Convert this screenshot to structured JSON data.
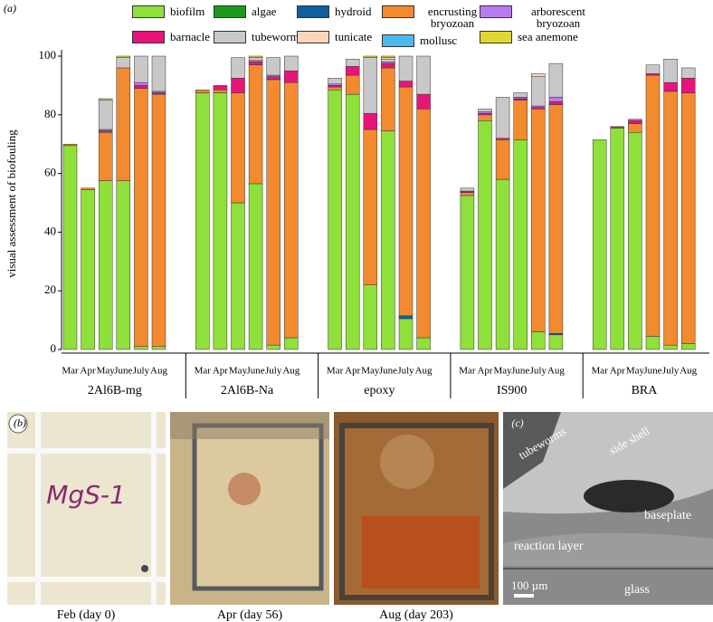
{
  "chart_data": {
    "type": "bar",
    "stacked": true,
    "panel_label": "(a)",
    "y_label": "visual assessment of biofouling",
    "groups": [
      "2Al6B-mg",
      "2Al6B-Na",
      "epoxy",
      "IS900",
      "BRA"
    ],
    "categories": [
      "Mar",
      "Apr",
      "May",
      "June",
      "July",
      "Aug",
      "Mar",
      "Apr",
      "May",
      "June",
      "July",
      "Aug",
      "Mar",
      "Apr",
      "May",
      "June",
      "July",
      "Aug",
      "Mar",
      "Apr",
      "May",
      "June",
      "July",
      "Aug",
      "Mar",
      "Apr",
      "May",
      "June",
      "July",
      "Aug"
    ],
    "ylim": [
      0,
      100
    ],
    "yticks": [
      0,
      20,
      40,
      60,
      80,
      100
    ],
    "series": [
      {
        "name": "biofilm",
        "color": "#8fe03a",
        "values": [
          69.5,
          54.5,
          57.5,
          57.5,
          1,
          1,
          87.5,
          87.5,
          50,
          56.5,
          1.5,
          4,
          88.5,
          87,
          22,
          74.5,
          10.5,
          4,
          52.5,
          78,
          58,
          71.5,
          6,
          5,
          71.5,
          75.5,
          74,
          4.5,
          1.5,
          2
        ]
      },
      {
        "name": "algae",
        "color": "#1a9a1a",
        "values": [
          0,
          0,
          0,
          0,
          0,
          0,
          0,
          0,
          0,
          0,
          0,
          0,
          0,
          0,
          0,
          0,
          0,
          0,
          0,
          0,
          0,
          0,
          0,
          0,
          0,
          0,
          0,
          0,
          0,
          0
        ]
      },
      {
        "name": "hydroid",
        "color": "#10609e",
        "values": [
          0,
          0,
          0,
          0,
          0,
          0,
          0,
          0,
          0,
          0,
          0,
          0,
          0,
          0,
          0,
          0,
          1,
          0,
          0,
          0,
          0,
          0,
          0,
          0.5,
          0,
          0,
          0,
          0,
          0,
          0
        ]
      },
      {
        "name": "encrusting bryozoan",
        "color": "#f28a30",
        "values": [
          0.5,
          0.5,
          16.5,
          38.5,
          88,
          86,
          1,
          1,
          37.5,
          40.5,
          90.5,
          87,
          1,
          6.5,
          53,
          21.5,
          78,
          78,
          1,
          2,
          13.5,
          13.5,
          76,
          78,
          0,
          0,
          3,
          89,
          86.5,
          85.5
        ]
      },
      {
        "name": "mollusc",
        "color": "#4db8f0",
        "values": [
          0,
          0,
          0,
          0,
          0,
          0,
          0,
          0,
          0,
          0,
          0,
          0,
          0,
          0,
          0,
          0,
          0,
          0,
          0,
          0,
          0,
          0,
          0,
          0,
          0,
          0,
          0,
          0,
          0,
          0
        ]
      },
      {
        "name": "barnacle",
        "color": "#e8147a",
        "values": [
          0,
          0,
          0.5,
          0,
          1,
          0.5,
          0,
          1.5,
          5,
          1,
          1,
          4,
          0.5,
          3,
          5.5,
          1.5,
          2,
          5,
          0.5,
          0.5,
          0.5,
          0.5,
          0.5,
          1,
          0,
          0.5,
          1,
          0.5,
          3,
          5
        ]
      },
      {
        "name": "arborescent bryozoan",
        "color": "#b87cf0",
        "values": [
          0,
          0,
          0.5,
          0,
          1,
          0.5,
          0,
          0,
          0,
          0.5,
          0.5,
          0,
          0.5,
          0,
          0,
          0.5,
          0,
          0,
          0,
          0.5,
          0,
          0.5,
          0.5,
          1.5,
          0,
          0,
          0.5,
          0,
          0,
          0
        ]
      },
      {
        "name": "tubeworm",
        "color": "#c8c8c8",
        "values": [
          0,
          0,
          10,
          3.5,
          9,
          12,
          0,
          0,
          7,
          1,
          6,
          5,
          2,
          2.5,
          19,
          1,
          8.5,
          13,
          1,
          1,
          14,
          1.5,
          10,
          11.5,
          0,
          0,
          0,
          3,
          8,
          3.5
        ]
      },
      {
        "name": "tunicate",
        "color": "#fdd5b8",
        "values": [
          0,
          0,
          0,
          0,
          0,
          0,
          0,
          0,
          0,
          0,
          0,
          0,
          0,
          0,
          0,
          0.5,
          0,
          0,
          0,
          0,
          0,
          0,
          1,
          0,
          0,
          0,
          0,
          0,
          0,
          0
        ]
      },
      {
        "name": "sea anemone",
        "color": "#e0d830",
        "values": [
          0,
          0,
          0.5,
          0.5,
          0,
          0,
          0,
          0,
          0,
          0.5,
          0,
          0,
          0,
          0,
          0.5,
          0.5,
          0,
          0,
          0,
          0,
          0,
          0,
          0,
          0,
          0,
          0,
          0,
          0,
          0,
          0
        ]
      }
    ]
  },
  "panel_b": {
    "label": "(b)",
    "sample_label": "MgS-1",
    "captions": [
      "Feb (day 0)",
      "Apr (day 56)",
      "Aug (day 203)"
    ]
  },
  "panel_c": {
    "label": "(c)",
    "annotations": [
      "tubeworms",
      "side shell",
      "baseplate",
      "reaction layer",
      "glass"
    ],
    "scale_bar": "100 µm"
  }
}
